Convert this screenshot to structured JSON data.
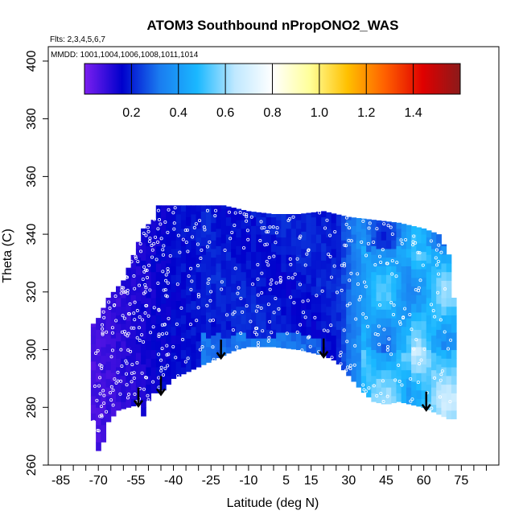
{
  "chart_data": {
    "type": "heatmap",
    "title": "ATOM3 Southbound nPropONO2_WAS",
    "flights_label": "Flts: 2,3,4,5,6,7",
    "dates_label": "MMDD: 1001,1004,1006,1008,1011,1014",
    "xlabel": "Latitude (deg N)",
    "ylabel": "Theta (C)",
    "xlim": [
      -90,
      90
    ],
    "ylim": [
      260,
      405
    ],
    "x_ticks_labeled": [
      "-85",
      "-70",
      "-55",
      "-40",
      "-25",
      "-10",
      "5",
      "15",
      "30",
      "45",
      "60",
      "75"
    ],
    "x_tick_values": [
      -85,
      -70,
      -55,
      -40,
      -25,
      -10,
      5,
      15,
      30,
      45,
      60,
      75
    ],
    "x_minor_ticks": [
      -80,
      -75,
      -65,
      -60,
      -50,
      -45,
      -35,
      -30,
      -20,
      -15,
      -5,
      0,
      10,
      20,
      25,
      35,
      40,
      50,
      55,
      65,
      70,
      80,
      85
    ],
    "y_ticks": [
      "260",
      "280",
      "300",
      "320",
      "340",
      "360",
      "380",
      "400"
    ],
    "y_tick_values": [
      260,
      280,
      300,
      320,
      340,
      360,
      380,
      400
    ],
    "colorbar": {
      "range": [
        0,
        1.6
      ],
      "tick_labels": [
        "0.2",
        "0.4",
        "0.6",
        "0.8",
        "1.0",
        "1.2",
        "1.4"
      ],
      "tick_values": [
        0.2,
        0.4,
        0.6,
        0.8,
        1.0,
        1.2,
        1.4
      ],
      "stops": [
        "#7c1ff0",
        "#0000cc",
        "#1a7cf0",
        "#1ab8ff",
        "#bfe8ff",
        "#ffffff",
        "#ffff99",
        "#ffc000",
        "#ff6000",
        "#e00000",
        "#8b1a1a"
      ]
    },
    "field": {
      "description": "nPropONO2 values on latitude-theta grid (approximate)",
      "lat_range": [
        -72,
        72
      ],
      "low_region": "southern high latitudes ~0.1 (purple)",
      "mid_region": "tropics ~0.2 (dark blue)",
      "high_region": "northern mid latitudes 0.4-0.6 (light blue)"
    },
    "arrows_lat": [
      -54,
      -45,
      -21,
      20,
      61
    ]
  }
}
